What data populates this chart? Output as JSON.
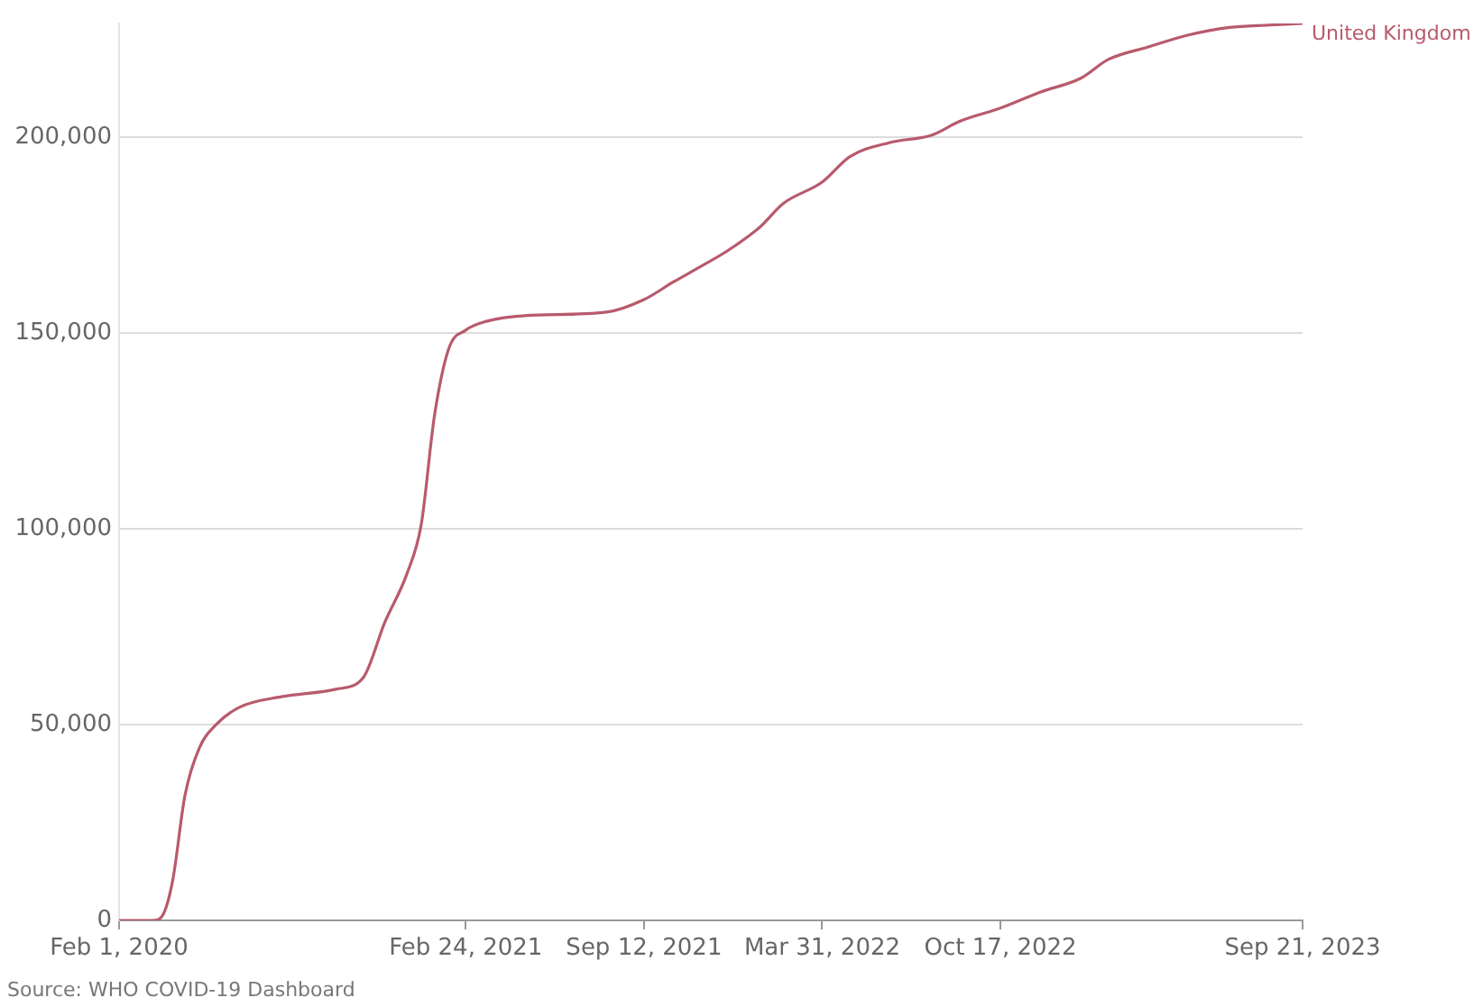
{
  "chart_data": {
    "type": "line",
    "annotations": [
      "Source: WHO COVID-19 Dashboard"
    ],
    "x": [
      "2020-02-01",
      "2020-03-10",
      "2020-03-20",
      "2020-04-01",
      "2020-04-15",
      "2020-05-01",
      "2020-05-20",
      "2020-06-15",
      "2020-08-01",
      "2020-10-01",
      "2020-11-01",
      "2020-11-25",
      "2020-12-20",
      "2021-01-05",
      "2021-01-20",
      "2021-02-05",
      "2021-02-24",
      "2021-03-20",
      "2021-05-01",
      "2021-08-01",
      "2021-09-12",
      "2021-10-15",
      "2021-11-15",
      "2021-12-15",
      "2022-01-20",
      "2022-02-15",
      "2022-03-31",
      "2022-05-01",
      "2022-06-15",
      "2022-08-01",
      "2022-09-01",
      "2022-10-17",
      "2022-12-01",
      "2023-01-15",
      "2023-02-15",
      "2023-04-01",
      "2023-05-15",
      "2023-07-01",
      "2023-08-15",
      "2023-09-21"
    ],
    "series": [
      {
        "name": "United Kingdom",
        "color": "#b85a6c",
        "values": [
          0,
          0,
          1000,
          10000,
          32000,
          44000,
          50000,
          54400,
          57100,
          59000,
          62000,
          76000,
          88500,
          101000,
          129000,
          146000,
          150700,
          153000,
          154400,
          155300,
          158500,
          163000,
          167000,
          171000,
          177000,
          183000,
          188500,
          195000,
          198600,
          200500,
          204000,
          207400,
          211500,
          215000,
          219800,
          223000,
          226000,
          228000,
          228600,
          229000
        ]
      }
    ],
    "xlim": [
      "2020-02-01",
      "2023-09-21"
    ],
    "xticks": [
      {
        "value": "2020-02-01",
        "label": "Feb 1, 2020"
      },
      {
        "value": "2021-02-24",
        "label": "Feb 24, 2021"
      },
      {
        "value": "2021-09-12",
        "label": "Sep 12, 2021"
      },
      {
        "value": "2022-03-31",
        "label": "Mar 31, 2022"
      },
      {
        "value": "2022-10-17",
        "label": "Oct 17, 2022"
      },
      {
        "value": "2023-09-21",
        "label": "Sep 21, 2023"
      }
    ],
    "ylim": [
      0,
      229000
    ],
    "yticks": [
      {
        "value": 0,
        "label": "0"
      },
      {
        "value": 50000,
        "label": "50,000"
      },
      {
        "value": 100000,
        "label": "100,000"
      },
      {
        "value": 150000,
        "label": "150,000"
      },
      {
        "value": 200000,
        "label": "200,000"
      }
    ],
    "grid": "y",
    "marker": "none",
    "line_style": "solid"
  }
}
